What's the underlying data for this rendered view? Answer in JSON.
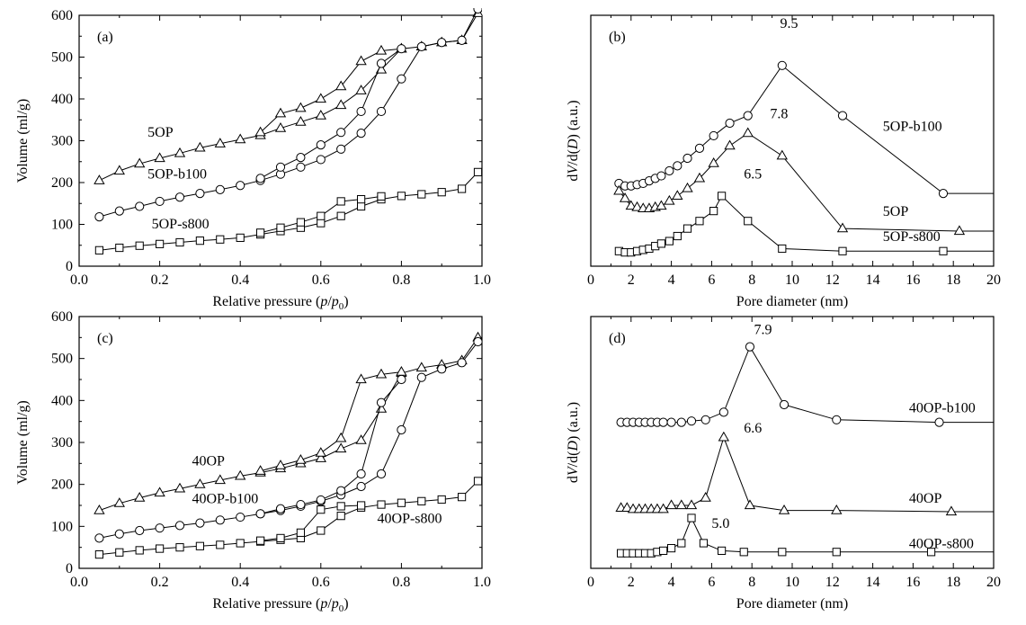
{
  "chart_data": [
    {
      "panel": "(a)",
      "type": "line",
      "xlabel_parts": [
        "Relative pressure (",
        "p",
        "/",
        "p",
        "0",
        ")"
      ],
      "ylabel": "Volume (ml/g)",
      "xlim": [
        0,
        1.0
      ],
      "ylim": [
        0,
        600
      ],
      "xticks": [
        0,
        0.2,
        0.4,
        0.6,
        0.8,
        1.0
      ],
      "xtick_labels": [
        "0.0",
        "0.2",
        "0.4",
        "0.6",
        "0.8",
        "1.0"
      ],
      "yticks": [
        0,
        100,
        200,
        300,
        400,
        500,
        600
      ],
      "ytick_labels": [
        "0",
        "100",
        "200",
        "300",
        "400",
        "500",
        "600"
      ],
      "annotations": [
        {
          "text": "5OP",
          "x": 0.17,
          "y": 310
        },
        {
          "text": "5OP-b100",
          "x": 0.17,
          "y": 210
        },
        {
          "text": "5OP-s800",
          "x": 0.18,
          "y": 90
        }
      ],
      "series": [
        {
          "name": "5OP",
          "marker": "triangle",
          "curves": [
            {
              "x": [
                0.05,
                0.1,
                0.15,
                0.2,
                0.25,
                0.3,
                0.35,
                0.4,
                0.45,
                0.5,
                0.55,
                0.6,
                0.65,
                0.7,
                0.75,
                0.8,
                0.85,
                0.9,
                0.95,
                0.99
              ],
              "y": [
                205,
                228,
                245,
                258,
                270,
                283,
                293,
                303,
                313,
                330,
                345,
                360,
                385,
                420,
                470,
                520,
                525,
                535,
                540,
                605
              ]
            },
            {
              "x": [
                0.45,
                0.5,
                0.55,
                0.6,
                0.65,
                0.7,
                0.75,
                0.8
              ],
              "y": [
                320,
                365,
                378,
                400,
                430,
                490,
                515,
                520
              ]
            }
          ]
        },
        {
          "name": "5OP-b100",
          "marker": "circle",
          "curves": [
            {
              "x": [
                0.05,
                0.1,
                0.15,
                0.2,
                0.25,
                0.3,
                0.35,
                0.4,
                0.45,
                0.5,
                0.55,
                0.6,
                0.65,
                0.7,
                0.75,
                0.8,
                0.85,
                0.9,
                0.95,
                0.99
              ],
              "y": [
                118,
                132,
                143,
                155,
                165,
                174,
                183,
                193,
                205,
                220,
                237,
                255,
                280,
                318,
                370,
                448,
                525,
                535,
                540,
                615
              ]
            },
            {
              "x": [
                0.45,
                0.5,
                0.55,
                0.6,
                0.65,
                0.7,
                0.75,
                0.8
              ],
              "y": [
                210,
                237,
                260,
                290,
                320,
                370,
                485,
                520
              ]
            }
          ]
        },
        {
          "name": "5OP-s800",
          "marker": "square",
          "curves": [
            {
              "x": [
                0.05,
                0.1,
                0.15,
                0.2,
                0.25,
                0.3,
                0.35,
                0.4,
                0.45,
                0.5,
                0.55,
                0.6,
                0.65,
                0.7,
                0.75,
                0.8,
                0.85,
                0.9,
                0.95,
                0.99
              ],
              "y": [
                38,
                44,
                49,
                53,
                57,
                61,
                64,
                68,
                76,
                84,
                92,
                103,
                120,
                143,
                160,
                168,
                172,
                177,
                185,
                225
              ]
            },
            {
              "x": [
                0.45,
                0.5,
                0.55,
                0.6,
                0.65,
                0.7,
                0.75
              ],
              "y": [
                80,
                92,
                105,
                120,
                155,
                160,
                167
              ]
            }
          ]
        }
      ]
    },
    {
      "panel": "(b)",
      "type": "line",
      "xlabel": "Pore diameter (nm)",
      "ylabel_parts": [
        "d",
        "V",
        "/d(",
        "D",
        ") (a.u.)"
      ],
      "xlim": [
        0,
        20
      ],
      "ylim": [
        0,
        100
      ],
      "xticks": [
        0,
        2,
        4,
        6,
        8,
        10,
        12,
        14,
        16,
        18,
        20
      ],
      "xtick_labels": [
        "0",
        "2",
        "4",
        "6",
        "8",
        "10",
        "12",
        "14",
        "16",
        "18",
        "20"
      ],
      "annotations": [
        {
          "text": "9.5",
          "x": 9.4,
          "y": 95
        },
        {
          "text": "7.8",
          "x": 8.9,
          "y": 59
        },
        {
          "text": "6.5",
          "x": 7.6,
          "y": 35
        },
        {
          "text": "5OP-b100",
          "x": 14.5,
          "y": 54
        },
        {
          "text": "5OP",
          "x": 14.5,
          "y": 20
        },
        {
          "text": "5OP-s800",
          "x": 14.5,
          "y": 10
        }
      ],
      "series": [
        {
          "name": "5OP-b100",
          "marker": "circle",
          "x": [
            1.4,
            1.7,
            2.0,
            2.3,
            2.6,
            2.9,
            3.2,
            3.5,
            3.9,
            4.3,
            4.8,
            5.4,
            6.1,
            6.9,
            7.8,
            9.5,
            12.5,
            17.5,
            20
          ],
          "y": [
            33,
            32,
            32,
            32.5,
            33,
            34,
            35,
            36,
            38,
            40,
            43,
            47,
            52,
            57,
            60,
            80,
            60,
            29,
            29
          ]
        },
        {
          "name": "5OP",
          "marker": "triangle",
          "x": [
            1.4,
            1.7,
            2.0,
            2.3,
            2.6,
            2.9,
            3.2,
            3.5,
            3.9,
            4.3,
            4.8,
            5.4,
            6.1,
            6.9,
            7.8,
            9.5,
            12.5,
            18.3,
            20
          ],
          "y": [
            30,
            27,
            24,
            23.5,
            23,
            23,
            23.5,
            24,
            26,
            28,
            31,
            35,
            41,
            48,
            53,
            44,
            15,
            14,
            14
          ]
        },
        {
          "name": "5OP-s800",
          "marker": "square",
          "x": [
            1.4,
            1.7,
            2.0,
            2.3,
            2.6,
            2.9,
            3.2,
            3.5,
            3.9,
            4.3,
            4.8,
            5.4,
            6.1,
            6.5,
            7.8,
            9.5,
            12.5,
            17.5,
            20
          ],
          "y": [
            6,
            5.5,
            5.5,
            6,
            6.5,
            7,
            8,
            9,
            10,
            12,
            15,
            18,
            22,
            28,
            18,
            7,
            6,
            6,
            6
          ]
        }
      ]
    },
    {
      "panel": "(c)",
      "type": "line",
      "xlabel_parts": [
        "Relative pressure (",
        "p",
        "/",
        "p",
        "0",
        ")"
      ],
      "ylabel": "Volume (ml/g)",
      "xlim": [
        0,
        1.0
      ],
      "ylim": [
        0,
        600
      ],
      "xticks": [
        0,
        0.2,
        0.4,
        0.6,
        0.8,
        1.0
      ],
      "xtick_labels": [
        "0.0",
        "0.2",
        "0.4",
        "0.6",
        "0.8",
        "1.0"
      ],
      "yticks": [
        0,
        100,
        200,
        300,
        400,
        500,
        600
      ],
      "ytick_labels": [
        "0",
        "100",
        "200",
        "300",
        "400",
        "500",
        "600"
      ],
      "annotations": [
        {
          "text": "40OP",
          "x": 0.28,
          "y": 245
        },
        {
          "text": "40OP-b100",
          "x": 0.28,
          "y": 155
        },
        {
          "text": "40OP-s800",
          "x": 0.74,
          "y": 108
        }
      ],
      "series": [
        {
          "name": "40OP",
          "marker": "triangle",
          "curves": [
            {
              "x": [
                0.05,
                0.1,
                0.15,
                0.2,
                0.25,
                0.3,
                0.35,
                0.4,
                0.45,
                0.5,
                0.55,
                0.6,
                0.65,
                0.7,
                0.75,
                0.8,
                0.85,
                0.9,
                0.95,
                0.99
              ],
              "y": [
                138,
                155,
                168,
                180,
                190,
                200,
                210,
                220,
                228,
                238,
                250,
                262,
                285,
                305,
                380,
                465,
                478,
                485,
                495,
                550
              ]
            },
            {
              "x": [
                0.45,
                0.5,
                0.55,
                0.6,
                0.65,
                0.7,
                0.75,
                0.8
              ],
              "y": [
                232,
                245,
                258,
                275,
                310,
                450,
                462,
                468
              ]
            }
          ]
        },
        {
          "name": "40OP-b100",
          "marker": "circle",
          "curves": [
            {
              "x": [
                0.05,
                0.1,
                0.15,
                0.2,
                0.25,
                0.3,
                0.35,
                0.4,
                0.45,
                0.5,
                0.55,
                0.6,
                0.65,
                0.7,
                0.75,
                0.8,
                0.85,
                0.9,
                0.95,
                0.99
              ],
              "y": [
                72,
                82,
                90,
                96,
                102,
                108,
                115,
                122,
                130,
                138,
                148,
                160,
                175,
                195,
                225,
                330,
                455,
                475,
                490,
                540
              ]
            },
            {
              "x": [
                0.45,
                0.5,
                0.55,
                0.6,
                0.65,
                0.7,
                0.75,
                0.8
              ],
              "y": [
                130,
                142,
                152,
                163,
                185,
                225,
                395,
                450
              ]
            }
          ]
        },
        {
          "name": "40OP-s800",
          "marker": "square",
          "curves": [
            {
              "x": [
                0.05,
                0.1,
                0.15,
                0.2,
                0.25,
                0.3,
                0.35,
                0.4,
                0.45,
                0.5,
                0.55,
                0.6,
                0.65,
                0.7,
                0.75,
                0.8,
                0.85,
                0.9,
                0.95,
                0.99
              ],
              "y": [
                33,
                38,
                43,
                47,
                50,
                53,
                56,
                60,
                64,
                68,
                72,
                90,
                125,
                145,
                152,
                156,
                160,
                164,
                170,
                208
              ]
            },
            {
              "x": [
                0.45,
                0.5,
                0.55,
                0.6,
                0.65,
                0.7
              ],
              "y": [
                66,
                72,
                85,
                140,
                148,
                150
              ]
            }
          ]
        }
      ]
    },
    {
      "panel": "(d)",
      "type": "line",
      "xlabel": "Pore diameter (nm)",
      "ylabel_parts": [
        "d",
        "V",
        "/d(",
        "D",
        ") (a.u.)"
      ],
      "xlim": [
        0,
        20
      ],
      "ylim": [
        0,
        100
      ],
      "xticks": [
        0,
        2,
        4,
        6,
        8,
        10,
        12,
        14,
        16,
        18,
        20
      ],
      "xtick_labels": [
        "0",
        "2",
        "4",
        "6",
        "8",
        "10",
        "12",
        "14",
        "16",
        "18",
        "20"
      ],
      "annotations": [
        {
          "text": "7.9",
          "x": 8.1,
          "y": 93
        },
        {
          "text": "6.6",
          "x": 7.6,
          "y": 54
        },
        {
          "text": "5.0",
          "x": 6.0,
          "y": 16
        },
        {
          "text": "40OP-b100",
          "x": 15.8,
          "y": 62
        },
        {
          "text": "40OP",
          "x": 15.8,
          "y": 26
        },
        {
          "text": "40OP-s800",
          "x": 15.8,
          "y": 8
        }
      ],
      "series": [
        {
          "name": "40OP-b100",
          "marker": "circle",
          "x": [
            1.5,
            1.8,
            2.1,
            2.4,
            2.7,
            3.0,
            3.3,
            3.6,
            4.0,
            4.5,
            5.0,
            5.7,
            6.6,
            7.9,
            9.6,
            12.2,
            17.3,
            20
          ],
          "y": [
            58,
            58,
            58,
            58,
            58,
            58,
            58,
            58,
            58,
            58,
            58.5,
            59,
            62,
            88,
            65,
            59,
            58,
            58
          ]
        },
        {
          "name": "40OP",
          "marker": "triangle",
          "x": [
            1.5,
            1.8,
            2.1,
            2.4,
            2.7,
            3.0,
            3.3,
            3.6,
            4.0,
            4.5,
            5.0,
            5.7,
            6.6,
            7.9,
            9.6,
            12.2,
            17.9,
            20
          ],
          "y": [
            24,
            24,
            23.5,
            23.5,
            23.5,
            23.5,
            23.5,
            23.5,
            25,
            25,
            25,
            28,
            52,
            25,
            23,
            23,
            22.5,
            22.5
          ]
        },
        {
          "name": "40OP-s800",
          "marker": "square",
          "x": [
            1.5,
            1.8,
            2.1,
            2.4,
            2.7,
            3.0,
            3.3,
            3.6,
            4.0,
            4.5,
            5.0,
            5.6,
            6.5,
            7.6,
            9.5,
            12.2,
            16.9,
            20
          ],
          "y": [
            6,
            6,
            6,
            6,
            6,
            6,
            6.5,
            7,
            8,
            10,
            20,
            10,
            7,
            6.5,
            6.5,
            6.5,
            6.5,
            6.5
          ]
        }
      ]
    }
  ]
}
